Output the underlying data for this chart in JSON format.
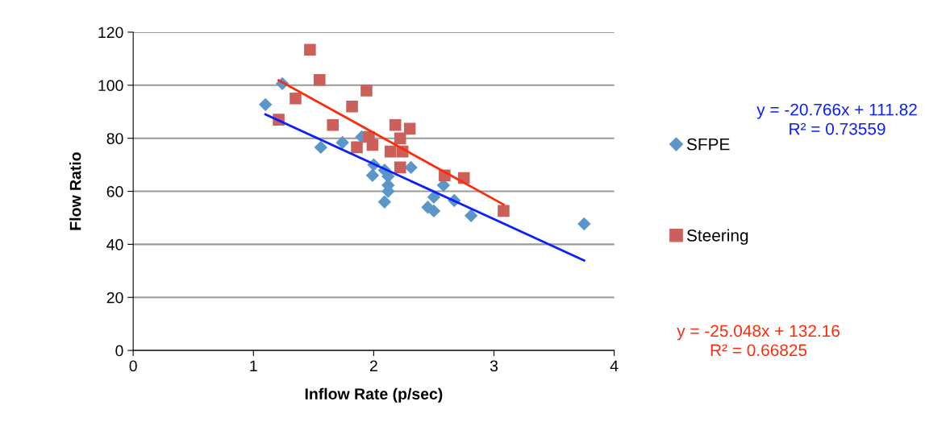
{
  "chart_data": {
    "type": "scatter",
    "xlabel": "Inflow Rate (p/sec)",
    "ylabel": "Flow Ratio",
    "xlim": [
      0,
      4
    ],
    "xticks": [
      0,
      1,
      2,
      3,
      4
    ],
    "ylim": [
      0,
      120
    ],
    "yticks": [
      0,
      20,
      40,
      60,
      80,
      100,
      120
    ],
    "grid": "y",
    "legend": "right",
    "series": [
      {
        "name": "SFPE",
        "color": "#5b96cb",
        "marker": "diamond",
        "x": [
          1.1,
          1.24,
          1.56,
          1.74,
          1.9,
          2.0,
          1.99,
          2.09,
          2.12,
          2.12,
          2.12,
          2.09,
          2.31,
          2.45,
          2.5,
          2.5,
          2.58,
          2.67,
          2.81,
          3.75
        ],
        "values": [
          92.7,
          100.6,
          76.6,
          78.4,
          80.5,
          70,
          66,
          68,
          65.6,
          62.3,
          60,
          56,
          69,
          54,
          52.6,
          57.8,
          62.3,
          56.5,
          50.8,
          47.7
        ]
      },
      {
        "name": "Steering",
        "color": "#cc5f59",
        "marker": "square",
        "x": [
          1.47,
          1.55,
          1.35,
          1.21,
          1.66,
          1.82,
          1.94,
          1.86,
          1.96,
          1.99,
          2.18,
          2.3,
          2.14,
          2.22,
          2.24,
          2.22,
          2.59,
          2.75,
          3.08
        ],
        "values": [
          113.4,
          102,
          95,
          87,
          85,
          92,
          98,
          76.6,
          80.5,
          77.5,
          85,
          83.6,
          75,
          80,
          75,
          69,
          66,
          65,
          52.6
        ]
      },
      {
        "type": "line",
        "color": "#0a1eff",
        "x": [
          1.1,
          3.75
        ],
        "values": [
          88.98,
          33.95
        ]
      },
      {
        "type": "line",
        "color": "#ff2a0a",
        "x": [
          1.21,
          3.08
        ],
        "values": [
          101.85,
          55.01
        ]
      }
    ],
    "annotations": [
      "y = -20.766x + 111.82\nR² = 0.73559",
      "y = -25.048x + 132.16\nR² = 0.66825"
    ]
  }
}
